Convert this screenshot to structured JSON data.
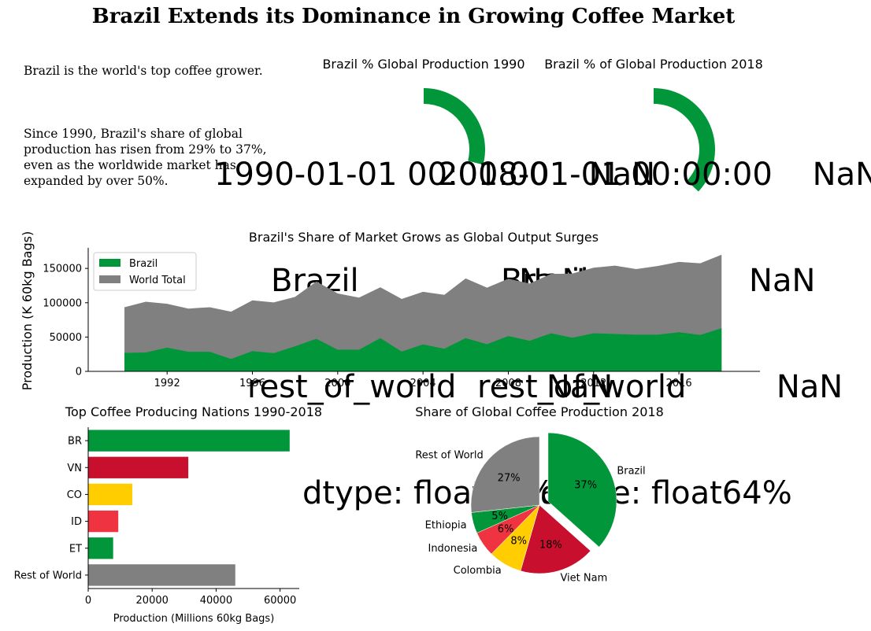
{
  "title": "Brazil Extends its Dominance in Growing Coffee Market",
  "intro": {
    "p1": "Brazil is the world's top coffee grower.",
    "p2_lines": [
      "Since 1990, Brazil's share of global",
      "production has risen from 29% to 37%,",
      "even as the worldwide market has",
      "expanded by over 50%."
    ]
  },
  "donuts": [
    {
      "title": "Brazil % Global Production 1990",
      "value": 29,
      "color": "#009639",
      "overlay_lines": [
        "1990-01-01 00:00:00    NaN",
        "Brazil                NaN",
        "rest_of_world         NaN",
        "dtype: float64%"
      ]
    },
    {
      "title": "Brazil % of Global Production 2018",
      "value": 37,
      "color": "#009639",
      "overlay_lines": [
        "2018-01-01 00:00:00    NaN",
        "Brazil                NaN",
        "rest_of_world         NaN",
        "dtype: float64%"
      ]
    }
  ],
  "chart_data": [
    {
      "type": "area",
      "title": "Brazil's Share of Market Grows as Global Output Surges",
      "ylabel": "Production (K 60kg Bags)",
      "xlabel": "",
      "legend": "top-left",
      "x": [
        1990,
        1991,
        1992,
        1993,
        1994,
        1995,
        1996,
        1997,
        1998,
        1999,
        2000,
        2001,
        2002,
        2003,
        2004,
        2005,
        2006,
        2007,
        2008,
        2009,
        2010,
        2011,
        2012,
        2013,
        2014,
        2015,
        2016,
        2017,
        2018
      ],
      "xticks": [
        1992,
        1996,
        2000,
        2004,
        2008,
        2012,
        2016
      ],
      "yticks": [
        0,
        50000,
        100000,
        150000
      ],
      "ylim": [
        0,
        180000
      ],
      "xlim": [
        1988.3,
        2019.8
      ],
      "series": [
        {
          "name": "Brazil",
          "color": "#009639",
          "values": [
            27000,
            27500,
            34500,
            28500,
            28500,
            18000,
            29500,
            26500,
            36500,
            47500,
            31500,
            31500,
            48500,
            28800,
            39300,
            33000,
            48500,
            39500,
            51500,
            44500,
            55500,
            49000,
            55500,
            54500,
            53500,
            53500,
            57000,
            53000,
            62900
          ]
        },
        {
          "name": "World Total",
          "color": "#808080",
          "values": [
            93500,
            101500,
            98500,
            91500,
            93500,
            87000,
            103500,
            100500,
            108500,
            131000,
            113500,
            107500,
            122500,
            105500,
            116000,
            111500,
            135500,
            122000,
            135000,
            128000,
            142000,
            142500,
            151000,
            154000,
            149000,
            153500,
            159500,
            157500,
            170000
          ]
        }
      ]
    },
    {
      "type": "bar",
      "orientation": "horizontal",
      "title": "Top Coffee Producing Nations 1990-2018",
      "xlabel": "Production (Millions 60kg Bags)",
      "ylabel": "",
      "categories": [
        "BR",
        "VN",
        "CO",
        "ID",
        "ET",
        "Rest of World"
      ],
      "values": [
        63000,
        31300,
        13800,
        9400,
        7800,
        46000
      ],
      "colors": [
        "#009639",
        "#C8102E",
        "#FFCD00",
        "#EF3340",
        "#009639",
        "#808080"
      ],
      "xticks": [
        0,
        20000,
        40000,
        60000
      ],
      "xlim": [
        0,
        66000
      ]
    },
    {
      "type": "pie",
      "title": "Share of Global Coffee Production 2018",
      "labels": [
        "Brazil",
        "Viet Nam",
        "Colombia",
        "Indonesia",
        "Ethiopia",
        "Rest of World"
      ],
      "values": [
        37,
        18,
        8,
        6,
        5,
        27
      ],
      "pct_labels": [
        "37%",
        "18%",
        "8%",
        "6%",
        "5%",
        "27%"
      ],
      "colors": [
        "#009639",
        "#C8102E",
        "#FFCD00",
        "#EF3340",
        "#009639",
        "#808080"
      ],
      "explode": "Brazil"
    }
  ]
}
